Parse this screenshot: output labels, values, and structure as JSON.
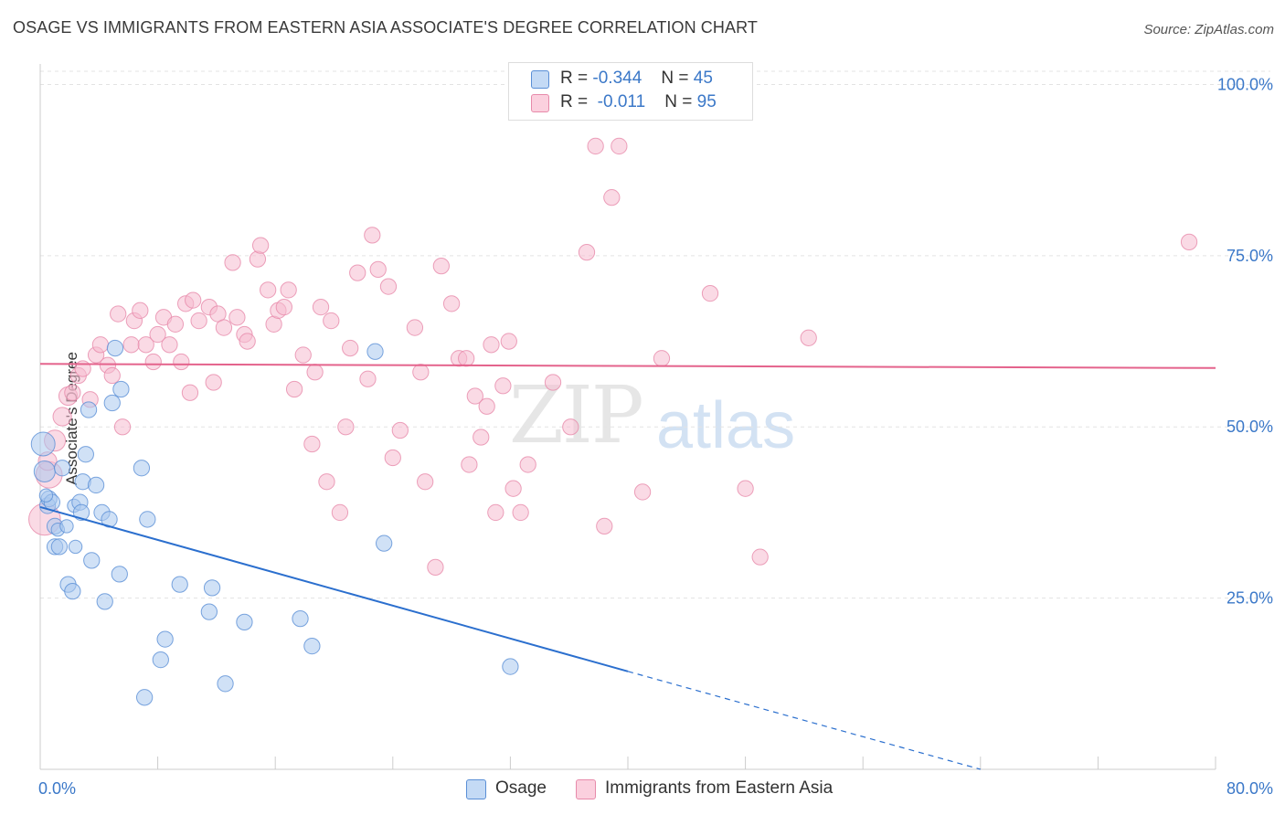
{
  "header": {
    "title": "OSAGE VS IMMIGRANTS FROM EASTERN ASIA ASSOCIATE'S DEGREE CORRELATION CHART",
    "source": "Source: ZipAtlas.com"
  },
  "watermark": {
    "zip": "ZIP",
    "atlas": "atlas"
  },
  "legend": {
    "rows": [
      {
        "r_label": "R =",
        "r_value": "-0.344",
        "n_label": "N =",
        "n_value": "45"
      },
      {
        "r_label": "R =",
        "r_value": "-0.011",
        "n_label": "N =",
        "n_value": "95"
      }
    ]
  },
  "bottom_legend": {
    "osage": "Osage",
    "immigrants": "Immigrants from Eastern Asia"
  },
  "colors": {
    "osage_fill": "#a9c8ee",
    "osage_stroke": "#5a8fd6",
    "osage_line": "#2b6fce",
    "imm_fill": "#f6bcd0",
    "imm_stroke": "#e78aaa",
    "imm_line": "#e4638c",
    "axis_label": "#3b78c8",
    "grid": "#e3e3e3"
  },
  "chart_data": {
    "type": "scatter",
    "title": "OSAGE VS IMMIGRANTS FROM EASTERN ASIA ASSOCIATE'S DEGREE CORRELATION CHART",
    "xlabel": "",
    "ylabel": "Associate's Degree",
    "xlim": [
      0,
      80
    ],
    "ylim": [
      0,
      103
    ],
    "x_tick_labels": [
      "0.0%",
      "80.0%"
    ],
    "y_ticks": [
      25,
      50,
      75,
      100
    ],
    "y_tick_labels": [
      "25.0%",
      "50.0%",
      "75.0%",
      "100.0%"
    ],
    "grid": true,
    "series": [
      {
        "name": "Osage",
        "r": -0.344,
        "n": 45,
        "trend": {
          "x0": 0,
          "y0": 38.3,
          "x1": 40,
          "y1": 14.3,
          "dashed_to_x": 64,
          "dashed_to_y": 0
        },
        "points": [
          [
            0.2,
            47.5,
            18
          ],
          [
            0.3,
            43.5,
            16
          ],
          [
            0.5,
            38.5,
            12
          ],
          [
            0.6,
            39.5,
            12
          ],
          [
            0.8,
            39.0,
            12
          ],
          [
            1.0,
            35.5,
            12
          ],
          [
            1.0,
            32.5,
            12
          ],
          [
            1.2,
            35.0,
            10
          ],
          [
            1.3,
            32.5,
            12
          ],
          [
            1.5,
            44.0,
            12
          ],
          [
            1.8,
            35.5,
            10
          ],
          [
            1.9,
            27.0,
            12
          ],
          [
            2.2,
            26.0,
            12
          ],
          [
            2.3,
            38.5,
            10
          ],
          [
            2.4,
            32.5,
            10
          ],
          [
            2.7,
            39.0,
            12
          ],
          [
            2.8,
            37.5,
            12
          ],
          [
            2.9,
            42.0,
            12
          ],
          [
            3.1,
            46.0,
            12
          ],
          [
            3.3,
            52.5,
            12
          ],
          [
            3.5,
            30.5,
            12
          ],
          [
            3.8,
            41.5,
            12
          ],
          [
            4.2,
            37.5,
            12
          ],
          [
            4.4,
            24.5,
            12
          ],
          [
            4.7,
            36.5,
            12
          ],
          [
            4.9,
            53.5,
            12
          ],
          [
            5.1,
            61.5,
            12
          ],
          [
            5.4,
            28.5,
            12
          ],
          [
            5.5,
            55.5,
            12
          ],
          [
            6.9,
            44.0,
            12
          ],
          [
            7.1,
            10.5,
            12
          ],
          [
            7.3,
            36.5,
            12
          ],
          [
            8.2,
            16.0,
            12
          ],
          [
            8.5,
            19.0,
            12
          ],
          [
            9.5,
            27.0,
            12
          ],
          [
            11.5,
            23.0,
            12
          ],
          [
            11.7,
            26.5,
            12
          ],
          [
            12.6,
            12.5,
            12
          ],
          [
            13.9,
            21.5,
            12
          ],
          [
            17.7,
            22.0,
            12
          ],
          [
            18.5,
            18.0,
            12
          ],
          [
            22.8,
            61.0,
            12
          ],
          [
            23.4,
            33.0,
            12
          ],
          [
            32.0,
            15.0,
            12
          ],
          [
            0.4,
            40.0,
            10
          ]
        ]
      },
      {
        "name": "Immigrants from Eastern Asia",
        "r": -0.011,
        "n": 95,
        "trend": {
          "x0": 0,
          "y0": 59.2,
          "x1": 80,
          "y1": 58.6
        },
        "points": [
          [
            0.3,
            36.5,
            24
          ],
          [
            0.6,
            43.0,
            20
          ],
          [
            1.0,
            48.0,
            16
          ],
          [
            1.5,
            51.5,
            14
          ],
          [
            1.9,
            54.5,
            14
          ],
          [
            2.2,
            55.0,
            12
          ],
          [
            2.6,
            57.5,
            12
          ],
          [
            2.9,
            58.5,
            12
          ],
          [
            3.4,
            54.0,
            12
          ],
          [
            3.8,
            60.5,
            12
          ],
          [
            4.1,
            62.0,
            12
          ],
          [
            4.6,
            59.0,
            12
          ],
          [
            4.9,
            57.5,
            12
          ],
          [
            5.3,
            66.5,
            12
          ],
          [
            5.6,
            50.0,
            12
          ],
          [
            6.2,
            62.0,
            12
          ],
          [
            6.4,
            65.5,
            12
          ],
          [
            6.8,
            67.0,
            12
          ],
          [
            7.2,
            62.0,
            12
          ],
          [
            7.7,
            59.5,
            12
          ],
          [
            8.0,
            63.5,
            12
          ],
          [
            8.4,
            66.0,
            12
          ],
          [
            8.8,
            62.0,
            12
          ],
          [
            9.2,
            65.0,
            12
          ],
          [
            9.6,
            59.5,
            12
          ],
          [
            9.9,
            68.0,
            12
          ],
          [
            10.2,
            55.0,
            12
          ],
          [
            10.4,
            68.5,
            12
          ],
          [
            10.8,
            65.5,
            12
          ],
          [
            11.5,
            67.5,
            12
          ],
          [
            11.8,
            56.5,
            12
          ],
          [
            12.1,
            66.5,
            12
          ],
          [
            12.5,
            64.5,
            12
          ],
          [
            13.1,
            74.0,
            12
          ],
          [
            13.4,
            66.0,
            12
          ],
          [
            13.9,
            63.5,
            12
          ],
          [
            14.1,
            62.5,
            12
          ],
          [
            14.8,
            74.5,
            12
          ],
          [
            15.0,
            76.5,
            12
          ],
          [
            15.5,
            70.0,
            12
          ],
          [
            15.9,
            65.0,
            12
          ],
          [
            16.2,
            67.0,
            12
          ],
          [
            16.6,
            67.5,
            12
          ],
          [
            16.9,
            70.0,
            12
          ],
          [
            17.3,
            55.5,
            12
          ],
          [
            17.9,
            60.5,
            12
          ],
          [
            18.5,
            47.5,
            12
          ],
          [
            18.7,
            58.0,
            12
          ],
          [
            19.1,
            67.5,
            12
          ],
          [
            19.5,
            42.0,
            12
          ],
          [
            19.8,
            65.5,
            12
          ],
          [
            20.4,
            37.5,
            12
          ],
          [
            20.8,
            50.0,
            12
          ],
          [
            21.1,
            61.5,
            12
          ],
          [
            21.6,
            72.5,
            12
          ],
          [
            22.3,
            57.0,
            12
          ],
          [
            22.6,
            78.0,
            12
          ],
          [
            23.0,
            73.0,
            12
          ],
          [
            23.7,
            70.5,
            12
          ],
          [
            24.0,
            45.5,
            12
          ],
          [
            24.5,
            49.5,
            12
          ],
          [
            25.5,
            64.5,
            12
          ],
          [
            25.9,
            58.0,
            12
          ],
          [
            26.2,
            42.0,
            12
          ],
          [
            26.9,
            29.5,
            12
          ],
          [
            27.3,
            73.5,
            12
          ],
          [
            28.0,
            68.0,
            12
          ],
          [
            28.5,
            60.0,
            12
          ],
          [
            29.0,
            60.0,
            12
          ],
          [
            29.2,
            44.5,
            12
          ],
          [
            29.6,
            54.5,
            12
          ],
          [
            30.0,
            48.5,
            12
          ],
          [
            30.4,
            53.0,
            12
          ],
          [
            30.7,
            62.0,
            12
          ],
          [
            31.0,
            37.5,
            12
          ],
          [
            31.5,
            56.0,
            12
          ],
          [
            31.9,
            62.5,
            12
          ],
          [
            32.2,
            41.0,
            12
          ],
          [
            32.7,
            37.5,
            12
          ],
          [
            33.2,
            44.5,
            12
          ],
          [
            34.9,
            56.5,
            12
          ],
          [
            36.1,
            50.0,
            12
          ],
          [
            37.2,
            75.5,
            12
          ],
          [
            37.8,
            91.0,
            12
          ],
          [
            38.4,
            35.5,
            12
          ],
          [
            38.9,
            83.5,
            12
          ],
          [
            39.4,
            91.0,
            12
          ],
          [
            41.0,
            40.5,
            12
          ],
          [
            42.3,
            60.0,
            12
          ],
          [
            45.6,
            69.5,
            12
          ],
          [
            48.0,
            41.0,
            12
          ],
          [
            49.0,
            31.0,
            12
          ],
          [
            52.3,
            63.0,
            12
          ],
          [
            78.2,
            77.0,
            12
          ],
          [
            0.5,
            45.0,
            14
          ]
        ]
      }
    ]
  }
}
